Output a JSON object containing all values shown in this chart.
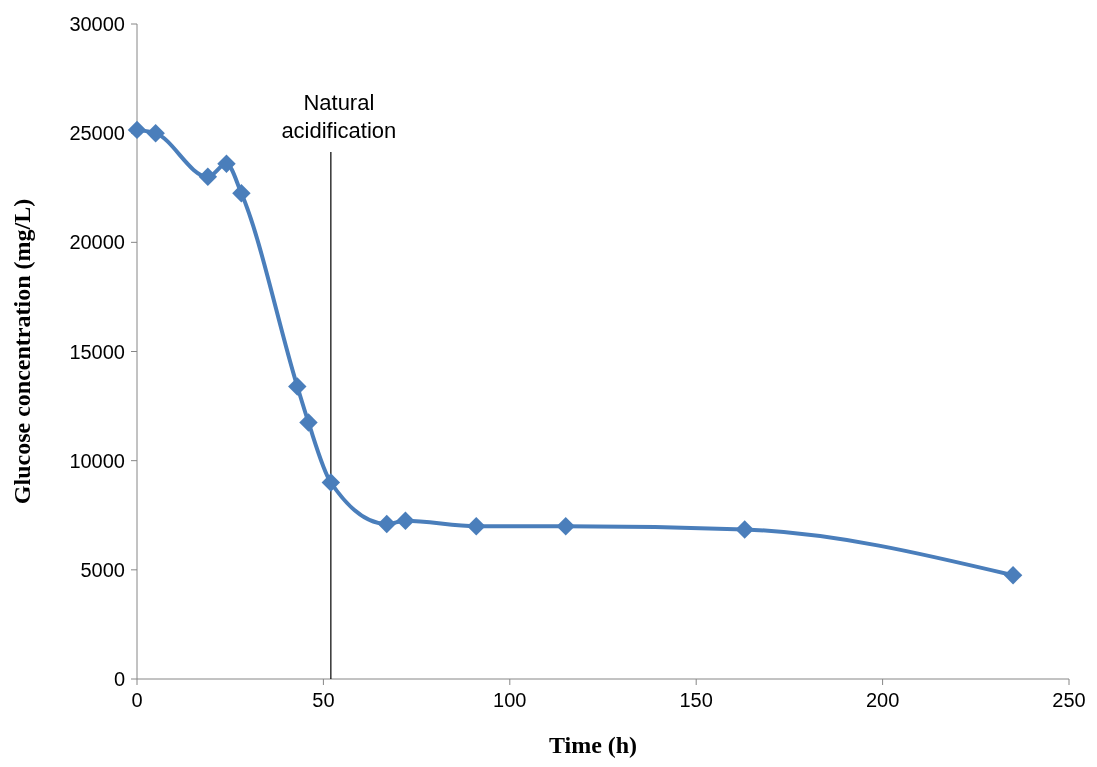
{
  "chart_data": {
    "type": "line",
    "xlabel": "Time (h)",
    "ylabel": "Glucose concentration (mg/L)",
    "x": [
      0,
      5,
      19,
      24,
      28,
      43,
      46,
      52,
      67,
      72,
      91,
      115,
      163,
      235
    ],
    "series": [
      {
        "color": "#4a7ebb",
        "values": [
          25150,
          25000,
          23000,
          23600,
          22250,
          13400,
          11750,
          9000,
          7100,
          7250,
          7000,
          7000,
          6850,
          4750
        ]
      }
    ],
    "xlim": [
      0,
      250
    ],
    "xticks": [
      0,
      50,
      100,
      150,
      200,
      250
    ],
    "ylim": [
      0,
      30000
    ],
    "yticks": [
      0,
      5000,
      10000,
      15000,
      20000,
      25000,
      30000
    ],
    "marker": "diamond",
    "grid": false,
    "ref_lines": [
      {
        "axis": "x",
        "value": 52,
        "label": "Natural acidification",
        "color": "#000000"
      }
    ]
  }
}
